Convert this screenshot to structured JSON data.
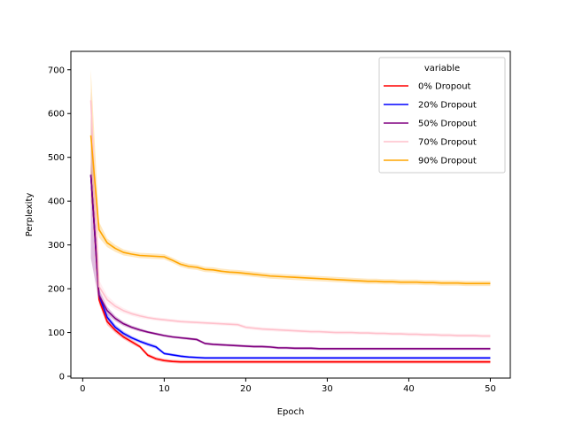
{
  "chart_data": {
    "type": "line",
    "title": "",
    "xlabel": "Epoch",
    "ylabel": "Perplexity",
    "xlim": [
      -1.45,
      52.45
    ],
    "ylim": [
      -4,
      742
    ],
    "xticks": [
      0,
      10,
      20,
      30,
      40,
      50
    ],
    "yticks": [
      0,
      100,
      200,
      300,
      400,
      500,
      600,
      700
    ],
    "grid": false,
    "legend": {
      "title": "variable",
      "placement": "top-right"
    },
    "x": [
      1,
      2,
      3,
      4,
      5,
      6,
      7,
      8,
      9,
      10,
      11,
      12,
      13,
      14,
      15,
      16,
      17,
      18,
      19,
      20,
      21,
      22,
      23,
      24,
      25,
      26,
      27,
      28,
      29,
      30,
      31,
      32,
      33,
      34,
      35,
      36,
      37,
      38,
      39,
      40,
      41,
      42,
      43,
      44,
      45,
      46,
      47,
      48,
      49,
      50
    ],
    "series": [
      {
        "name": "0% Dropout",
        "color": "#ff0000",
        "values": [
          460,
          175,
          125,
          105,
          90,
          79,
          68,
          48,
          40,
          36,
          34,
          33,
          33,
          33,
          33,
          33,
          33,
          33,
          33,
          33,
          33,
          33,
          33,
          33,
          33,
          33,
          33,
          33,
          33,
          33,
          33,
          33,
          33,
          33,
          33,
          33,
          33,
          33,
          33,
          33,
          33,
          33,
          33,
          33,
          33,
          33,
          33,
          33,
          33,
          33
        ],
        "band": [
          25,
          10,
          8,
          6,
          5,
          5,
          4,
          4,
          4,
          4,
          4,
          4,
          4,
          4,
          4,
          4,
          4,
          4,
          4,
          4,
          4,
          4,
          4,
          4,
          4,
          4,
          4,
          4,
          4,
          4,
          4,
          4,
          4,
          4,
          4,
          4,
          4,
          4,
          4,
          4,
          4,
          4,
          4,
          4,
          4,
          4,
          4,
          4,
          4,
          4
        ]
      },
      {
        "name": "20% Dropout",
        "color": "#0000ff",
        "values": [
          460,
          185,
          135,
          112,
          98,
          88,
          80,
          73,
          67,
          52,
          49,
          46,
          44,
          43,
          42,
          42,
          42,
          42,
          42,
          42,
          42,
          42,
          42,
          42,
          42,
          42,
          42,
          42,
          42,
          42,
          42,
          42,
          42,
          42,
          42,
          42,
          42,
          42,
          42,
          42,
          42,
          42,
          42,
          42,
          42,
          42,
          42,
          42,
          42,
          42
        ],
        "band": [
          30,
          12,
          8,
          6,
          5,
          4,
          4,
          4,
          4,
          3,
          3,
          3,
          3,
          3,
          3,
          3,
          3,
          3,
          3,
          3,
          3,
          3,
          3,
          3,
          3,
          3,
          3,
          3,
          3,
          3,
          3,
          3,
          3,
          3,
          3,
          3,
          3,
          3,
          3,
          3,
          3,
          3,
          3,
          3,
          3,
          3,
          3,
          3,
          3,
          3
        ]
      },
      {
        "name": "50% Dropout",
        "color": "#800080",
        "values": [
          460,
          185,
          150,
          132,
          120,
          112,
          106,
          101,
          97,
          93,
          90,
          88,
          86,
          84,
          75,
          73,
          72,
          71,
          70,
          69,
          68,
          68,
          67,
          65,
          65,
          64,
          64,
          64,
          63,
          63,
          63,
          63,
          63,
          63,
          63,
          63,
          63,
          63,
          63,
          63,
          63,
          63,
          63,
          63,
          63,
          63,
          63,
          63,
          63,
          63
        ],
        "band": [
          190,
          15,
          9,
          6,
          5,
          4,
          4,
          3,
          3,
          3,
          3,
          3,
          3,
          3,
          3,
          3,
          3,
          3,
          3,
          3,
          3,
          3,
          3,
          3,
          3,
          3,
          3,
          3,
          3,
          3,
          3,
          3,
          3,
          3,
          3,
          3,
          3,
          3,
          3,
          3,
          3,
          3,
          3,
          3,
          3,
          3,
          3,
          3,
          3,
          3
        ]
      },
      {
        "name": "70% Dropout",
        "color": "#ffc0cb",
        "values": [
          630,
          205,
          175,
          160,
          150,
          143,
          138,
          134,
          131,
          129,
          127,
          125,
          124,
          123,
          122,
          121,
          120,
          119,
          118,
          112,
          110,
          108,
          107,
          106,
          105,
          104,
          103,
          102,
          102,
          101,
          100,
          100,
          100,
          99,
          99,
          98,
          98,
          97,
          97,
          96,
          96,
          95,
          95,
          94,
          94,
          93,
          93,
          93,
          92,
          92
        ],
        "band": [
          30,
          15,
          10,
          7,
          6,
          5,
          5,
          4,
          4,
          4,
          4,
          4,
          4,
          4,
          4,
          4,
          4,
          4,
          4,
          4,
          4,
          4,
          4,
          4,
          4,
          4,
          4,
          4,
          4,
          4,
          4,
          4,
          4,
          4,
          4,
          4,
          4,
          4,
          4,
          4,
          4,
          4,
          4,
          4,
          4,
          4,
          4,
          4,
          4,
          4
        ]
      },
      {
        "name": "90% Dropout",
        "color": "#ffa500",
        "values": [
          550,
          335,
          305,
          292,
          283,
          279,
          276,
          275,
          274,
          273,
          265,
          256,
          251,
          249,
          244,
          243,
          240,
          238,
          237,
          235,
          233,
          231,
          229,
          228,
          227,
          226,
          225,
          224,
          223,
          222,
          221,
          220,
          219,
          218,
          217,
          217,
          216,
          216,
          215,
          215,
          215,
          214,
          214,
          213,
          213,
          213,
          212,
          212,
          212,
          212
        ],
        "band": [
          150,
          18,
          10,
          8,
          7,
          6,
          6,
          6,
          6,
          6,
          6,
          6,
          6,
          6,
          6,
          6,
          6,
          6,
          6,
          6,
          6,
          6,
          6,
          6,
          6,
          6,
          6,
          6,
          6,
          6,
          6,
          6,
          6,
          6,
          6,
          6,
          6,
          6,
          6,
          6,
          6,
          6,
          6,
          6,
          6,
          6,
          6,
          6,
          6,
          6
        ]
      }
    ]
  }
}
